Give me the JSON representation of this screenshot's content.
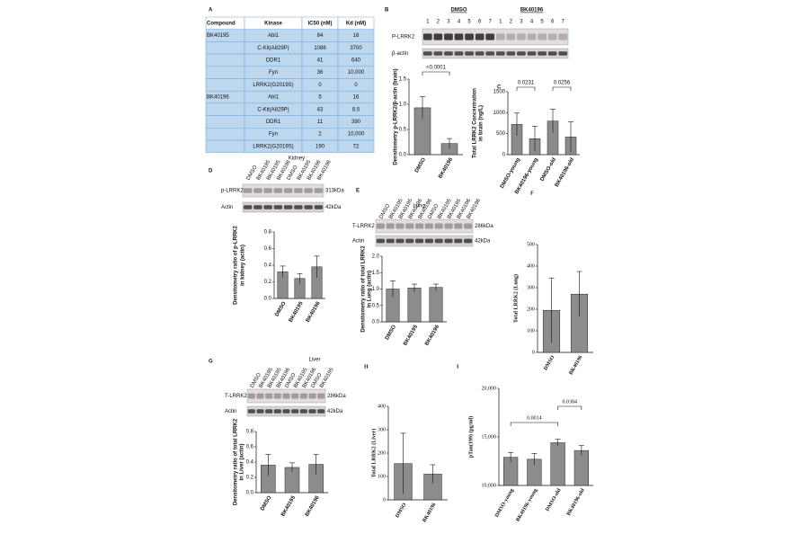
{
  "table": {
    "panel": "A",
    "header": [
      "Compound",
      "Kinase",
      "IC50 (nM)",
      "Kd (nM)"
    ],
    "rows": [
      [
        "BK40195",
        "Abl1",
        "84",
        "16"
      ],
      [
        null,
        "C-Kit(A829P)",
        "1086",
        "3700"
      ],
      [
        null,
        "DDR1",
        "41",
        "640"
      ],
      [
        null,
        "Fyn",
        "36",
        "10,000"
      ],
      [
        null,
        "LRRK2(G2019S)",
        "0",
        "0"
      ],
      [
        "BK40196",
        "Abl1",
        "5",
        "16"
      ],
      [
        null,
        "C-Kit(A829P)",
        "43",
        "8.5"
      ],
      [
        null,
        "DDR1",
        "11",
        "390"
      ],
      [
        null,
        "Fyn",
        "2",
        "10,000"
      ],
      [
        null,
        "LRRK2(G2019S)",
        "190",
        "72"
      ]
    ]
  },
  "blots": [
    {
      "panel": "B",
      "groups": [
        "DMSO",
        "BK40196"
      ],
      "lanes": [
        1,
        2,
        3,
        4,
        5,
        6,
        7,
        1,
        2,
        3,
        4,
        5,
        6,
        7
      ],
      "rows": [
        {
          "label": "P-LRRK2"
        },
        {
          "label": "β-actin"
        }
      ]
    },
    {
      "lanes": [
        "DMSO",
        "BK40195",
        "BK40195",
        "BK40196",
        "DMSO",
        "BK40195",
        "BK40196",
        "BK40196"
      ],
      "rows": [
        {
          "label": "p-LRRK2",
          "kda": "313kDa"
        },
        {
          "label": "Actin",
          "kda": "42kDa"
        }
      ]
    },
    {
      "lanes": [
        "DMSO",
        "BK40195",
        "BK40195",
        "BK40196",
        "BK40196",
        "DMSO",
        "BK40195",
        "BK40195",
        "BK40196",
        "BK40196"
      ],
      "rows": [
        {
          "label": "T-LRRK2",
          "kda": "286kDa"
        },
        {
          "label": "Actin",
          "kda": "42kDa"
        }
      ]
    },
    {
      "lanes": [
        "DMSO",
        "BK40195",
        "BK40195",
        "BK40196",
        "DMSO",
        "BK40195",
        "BK40196",
        "DMSO",
        "BK40195"
      ],
      "rows": [
        {
          "label": "T-LRRK2",
          "kda": "286kDa"
        },
        {
          "label": "Actin",
          "kda": "42kDa"
        }
      ]
    }
  ],
  "chart_data": [
    {
      "type": "bar",
      "ylabel": [
        "Densitometry p-LRRK2/β-actin (brain)"
      ],
      "categories": [
        "DMSO",
        "BK40196"
      ],
      "values": [
        0.93,
        0.22
      ],
      "errors": [
        0.22,
        0.1
      ],
      "color": "#8c8c8c",
      "ylim": [
        0,
        1.5
      ],
      "yticks": [
        {
          "value": 0,
          "label": "0.0"
        },
        {
          "value": 0.5,
          "label": "0.5"
        },
        {
          "value": 1,
          "label": "1.0"
        },
        {
          "value": 1.5,
          "label": "1.5"
        }
      ],
      "annotations": [
        "<0.0001"
      ]
    },
    {
      "type": "bar",
      "panel": "C",
      "ylabel": [
        "Total LRRK2 Concentration",
        "in brain (ng/L)"
      ],
      "categories": [
        "DMSO-young",
        "BK40196-young",
        "DMSO-old",
        "BK40196-old"
      ],
      "values": [
        720,
        380,
        800,
        420
      ],
      "errors": [
        270,
        300,
        280,
        360
      ],
      "color": "#8c8c8c",
      "ylim": [
        0,
        1500
      ],
      "yticks": [
        0,
        500,
        1000,
        1500
      ],
      "annotations": [
        "0.0231",
        "0.0256"
      ]
    },
    {
      "type": "bar",
      "panel": "D",
      "title": "Kidney",
      "ylabel": [
        "Densitometry ratio of p-LRRK2",
        "in kidney (actin)"
      ],
      "categories": [
        "DMSO",
        "BK40195",
        "BK40196"
      ],
      "values": [
        0.32,
        0.24,
        0.38
      ],
      "errors": [
        0.07,
        0.06,
        0.13
      ],
      "color": "#8c8c8c",
      "ylim": [
        0,
        0.8
      ],
      "yticks": [
        {
          "value": 0,
          "label": "0.0"
        },
        {
          "value": 0.2,
          "label": "0.2"
        },
        {
          "value": 0.4,
          "label": "0.4"
        },
        {
          "value": 0.6,
          "label": "0.6"
        },
        {
          "value": 0.8,
          "label": "0.8"
        }
      ]
    },
    {
      "type": "bar",
      "panel": "E",
      "title": "Lung",
      "ylabel": [
        "Densitometry ratio of total LRRK2",
        "in Lung (actin)"
      ],
      "categories": [
        "DMSO",
        "BK40195",
        "BK40196"
      ],
      "values": [
        1.0,
        1.03,
        1.05
      ],
      "errors": [
        0.25,
        0.12,
        0.1
      ],
      "color": "#8c8c8c",
      "ylim": [
        0,
        2
      ],
      "yticks": [
        {
          "value": 0,
          "label": "0.0"
        },
        {
          "value": 0.5,
          "label": "0.5"
        },
        {
          "value": 1,
          "label": "1.0"
        },
        {
          "value": 1.5,
          "label": "1.5"
        },
        {
          "value": 2,
          "label": "2.0"
        }
      ]
    },
    {
      "type": "bar",
      "panel": "F",
      "ylabel": [
        "Total LRRK2 (Lung)"
      ],
      "categories": [
        "DMSO",
        "BK40196"
      ],
      "values": [
        195,
        270
      ],
      "errors": [
        150,
        105
      ],
      "color": "#8c8c8c",
      "ylim": [
        0,
        500
      ],
      "yticks": [
        0,
        100,
        200,
        300,
        400,
        500
      ]
    },
    {
      "type": "bar",
      "panel": "G",
      "title": "Liver",
      "ylabel": [
        "Densitometry ratio of total LRRK2",
        "in Liver (actin)"
      ],
      "categories": [
        "DMSO",
        "BK40195",
        "BK40196"
      ],
      "values": [
        0.36,
        0.33,
        0.37
      ],
      "errors": [
        0.14,
        0.06,
        0.13
      ],
      "color": "#8c8c8c",
      "ylim": [
        0,
        0.8
      ],
      "yticks": [
        {
          "value": 0,
          "label": "0.0"
        },
        {
          "value": 0.2,
          "label": "0.2"
        },
        {
          "value": 0.4,
          "label": "0.4"
        },
        {
          "value": 0.6,
          "label": "0.6"
        },
        {
          "value": 0.8,
          "label": "0.8"
        }
      ]
    },
    {
      "type": "bar",
      "panel": "H",
      "ylabel": [
        "Total LRRK2 (Liver)"
      ],
      "categories": [
        "DMSO",
        "BK40196"
      ],
      "values": [
        155,
        110
      ],
      "errors": [
        130,
        40
      ],
      "color": "#8c8c8c",
      "ylim": [
        0,
        400
      ],
      "yticks": [
        0,
        100,
        200,
        300,
        400
      ]
    },
    {
      "type": "bar",
      "panel": "I",
      "ylabel": [
        "pTau(199) (pg/ml)"
      ],
      "categories": [
        "DMSO-young",
        "BK40196-young",
        "DMSO-old",
        "BK40196-old"
      ],
      "values": [
        12900,
        12700,
        14400,
        13600
      ],
      "errors": [
        500,
        600,
        350,
        500
      ],
      "color": "#8c8c8c",
      "ylim": [
        10000,
        20000
      ],
      "yticks": [
        {
          "value": 10000,
          "label": "10,000"
        },
        {
          "value": 15000,
          "label": "15,000"
        },
        {
          "value": 20000,
          "label": "20,000"
        }
      ],
      "annotations": [
        "0.0014",
        "0.0384"
      ]
    }
  ]
}
